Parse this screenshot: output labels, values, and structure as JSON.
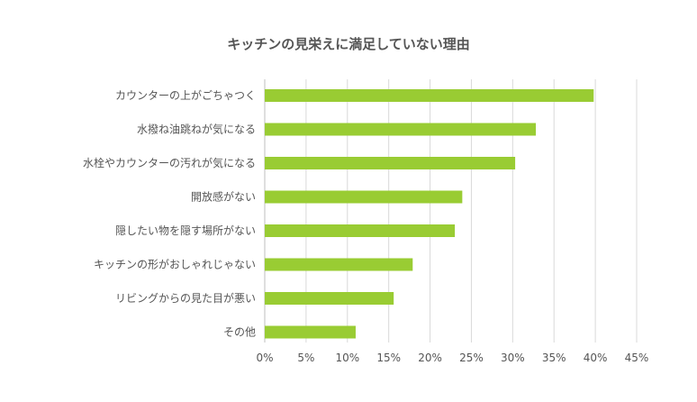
{
  "chart_data": {
    "type": "bar",
    "orientation": "horizontal",
    "title": "キッチンの見栄えに満足していない理由",
    "categories": [
      "カウンターの上がごちゃつく",
      "水撥ね油跳ねが気になる",
      "水栓やカウンターの汚れが気になる",
      "開放感がない",
      "隠したい物を隠す場所がない",
      "キッチンの形がおしゃれじゃない",
      "リビングからの見た目が悪い",
      "その他"
    ],
    "values": [
      39.8,
      32.8,
      30.3,
      23.9,
      23.0,
      17.9,
      15.6,
      11.0
    ],
    "unit": "%",
    "xlim": [
      0,
      45
    ],
    "xticks": [
      "0%",
      "5%",
      "10%",
      "15%",
      "20%",
      "25%",
      "30%",
      "35%",
      "40%",
      "45%"
    ],
    "grid": true,
    "bar_color": "#99cc33"
  }
}
